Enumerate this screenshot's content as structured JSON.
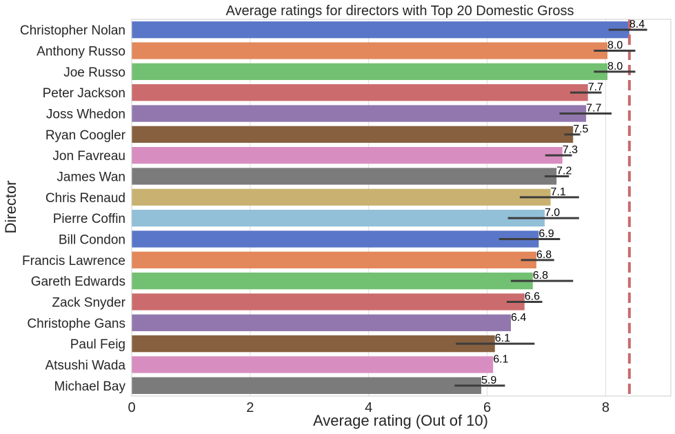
{
  "chart_data": {
    "type": "bar",
    "orientation": "horizontal",
    "title": "Average ratings for directors with Top 20 Domestic Gross",
    "xlabel": "Average rating (Out of 10)",
    "ylabel": "Director",
    "xlim": [
      0,
      9.1
    ],
    "x_ticks": [
      0,
      2,
      4,
      6,
      8
    ],
    "grid": true,
    "categories": [
      "Christopher Nolan",
      "Anthony Russo",
      "Joe Russo",
      "Peter Jackson",
      "Joss Whedon",
      "Ryan Coogler",
      "Jon Favreau",
      "James Wan",
      "Chris Renaud",
      "Pierre Coffin",
      "Bill Condon",
      "Francis Lawrence",
      "Gareth Edwards",
      "Zack Snyder",
      "Christophe Gans",
      "Paul Feig",
      "Atsushi Wada",
      "Michael Bay"
    ],
    "values": [
      8.4,
      8.03,
      8.03,
      7.7,
      7.67,
      7.45,
      7.27,
      7.17,
      7.07,
      6.97,
      6.87,
      6.83,
      6.77,
      6.63,
      6.4,
      6.13,
      6.1,
      5.9
    ],
    "value_labels": [
      "8.4",
      "8.0",
      "8.0",
      "7.7",
      "7.7",
      "7.5",
      "7.3",
      "7.2",
      "7.1",
      "7.0",
      "6.9",
      "6.8",
      "6.8",
      "6.6",
      "6.4",
      "6.1",
      "6.1",
      "5.9"
    ],
    "error_low": [
      8.05,
      7.8,
      7.8,
      7.4,
      7.22,
      7.3,
      6.98,
      6.97,
      6.55,
      6.35,
      6.2,
      6.57,
      6.4,
      6.33,
      null,
      5.47,
      null,
      5.45
    ],
    "error_high": [
      8.7,
      8.5,
      8.5,
      7.93,
      8.1,
      7.57,
      7.43,
      7.38,
      7.55,
      7.55,
      7.23,
      7.13,
      7.45,
      6.93,
      null,
      6.8,
      null,
      6.3
    ],
    "reference_line": {
      "value": 8.4,
      "style": "dashed",
      "color": "#c96a6e"
    },
    "colors": [
      "#5976c8",
      "#e2885b",
      "#72c172",
      "#cc6b6d",
      "#9277ae",
      "#87603f",
      "#d88dc0",
      "#7b7b7b",
      "#c9b271",
      "#91c0d8",
      "#5976c8",
      "#e2885b",
      "#72c172",
      "#cc6b6d",
      "#9277ae",
      "#87603f",
      "#d88dc0",
      "#7b7b7b"
    ]
  }
}
